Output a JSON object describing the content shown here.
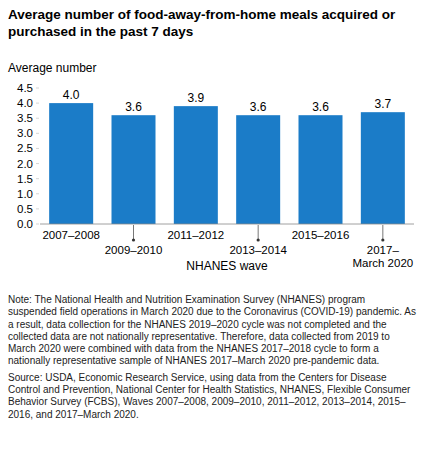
{
  "chart_data": {
    "type": "bar",
    "title": "Average number of food-away-from-home meals acquired or purchased in the past 7 days",
    "y_label": "Average number",
    "x_label": "NHANES wave",
    "categories": [
      "2007–2008",
      "2009–2010",
      "2011–2012",
      "2013–2014",
      "2015–2016",
      "2017–March 2020"
    ],
    "values": [
      4.0,
      3.6,
      3.9,
      3.6,
      3.6,
      3.7
    ],
    "value_labels": [
      "4.0",
      "3.6",
      "3.9",
      "3.6",
      "3.6",
      "3.7"
    ],
    "data_labels": true,
    "color": "#1b7cc8",
    "ylim": [
      0,
      4.5
    ],
    "yticks": [
      {
        "value": 0,
        "label": "0.0"
      },
      0.5,
      {
        "value": 1,
        "label": "1.0"
      },
      1.5,
      {
        "value": 2,
        "label": "2.0"
      },
      2.5,
      {
        "value": 3,
        "label": "3.0"
      },
      3.5,
      {
        "value": 4,
        "label": "4.0"
      },
      4.5
    ],
    "grid": false,
    "note": "Note: The National Health and Nutrition Examination Survey (NHANES) program suspended field operations in March 2020 due to the Coronavirus (COVID-19) pandemic. As a result, data collection for the NHANES 2019–2020 cycle was not completed and the collected data are not nationally representative. Therefore, data collected from 2019 to March 2020 were combined with data from the NHANES 2017–2018 cycle to form a nationally representative sample of NHANES 2017–March 2020 pre-pandemic data.",
    "source": "Source: USDA, Economic Research Service, using data from the Centers for Disease Control and Prevention, National Center for Health Statistics, NHANES, Flexible Consumer Behavior Survey (FCBS), Waves 2007–2008, 2009–2010, 2011–2012, 2013–2014, 2015–2016, and 2017–March 2020."
  }
}
